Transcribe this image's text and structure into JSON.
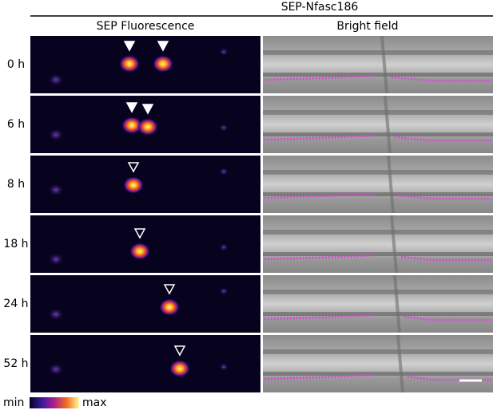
{
  "figure": {
    "title": "SEP-Nfasc186",
    "columns": [
      "SEP Fluorescence",
      "Bright field"
    ],
    "rows": [
      "0 h",
      "6 h",
      "8 h",
      "18 h",
      "24 h",
      "52 h"
    ],
    "colorbar": {
      "min": "min",
      "max": "max"
    }
  }
}
